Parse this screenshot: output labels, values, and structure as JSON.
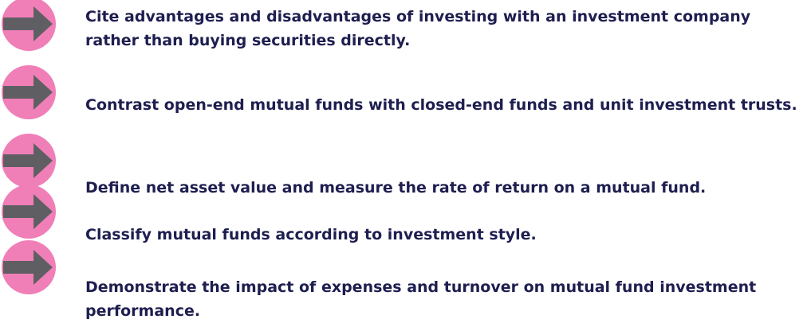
{
  "items": [
    "Cite advantages and disadvantages of investing with an investment company rather than buying securities directly.",
    "Contrast open-end mutual funds with closed-end funds and unit investment trusts.",
    "Define net asset value and measure the rate of return on a mutual fund.",
    "Classify mutual funds according to investment style.",
    "Demonstrate the impact of expenses and turnover on mutual fund investment performance."
  ]
}
